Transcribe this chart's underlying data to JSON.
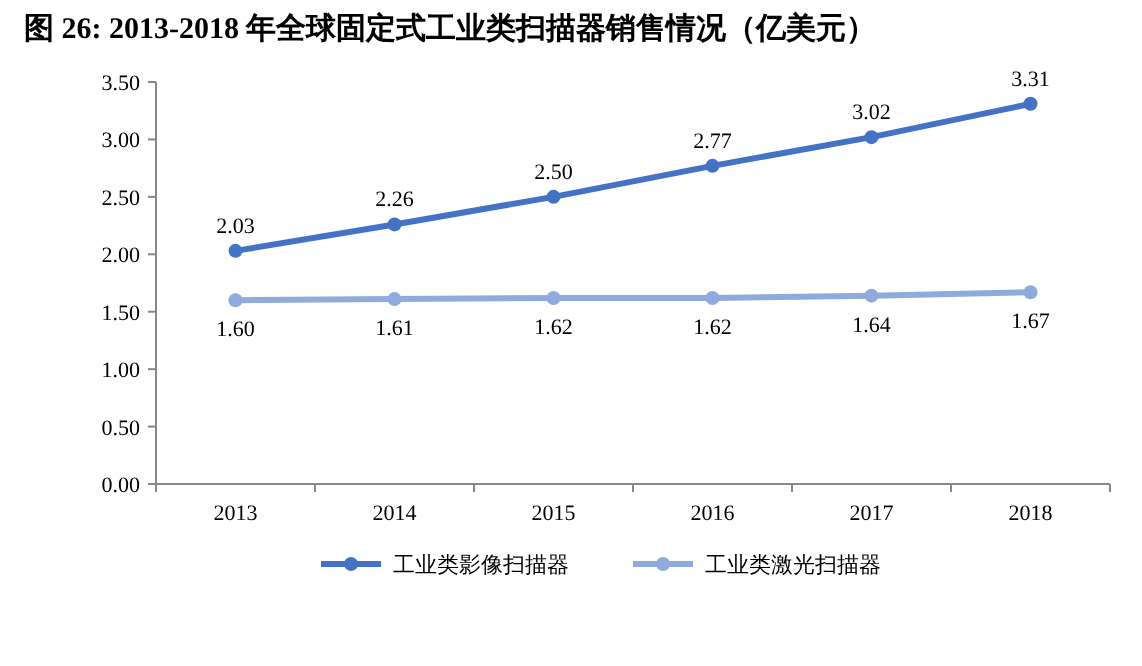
{
  "chart_data": {
    "type": "line",
    "title": "图 26: 2013-2018 年全球固定式工业类扫描器销售情况（亿美元）",
    "categories": [
      "2013",
      "2014",
      "2015",
      "2016",
      "2017",
      "2018"
    ],
    "series": [
      {
        "name": "工业类影像扫描器",
        "color": "#4472c4",
        "values": [
          2.03,
          2.26,
          2.5,
          2.77,
          3.02,
          3.31
        ],
        "value_labels": [
          "2.03",
          "2.26",
          "2.50",
          "2.77",
          "3.02",
          "3.31"
        ]
      },
      {
        "name": "工业类激光扫描器",
        "color": "#8faadc",
        "values": [
          1.6,
          1.61,
          1.62,
          1.62,
          1.64,
          1.67
        ],
        "value_labels": [
          "1.60",
          "1.61",
          "1.62",
          "1.62",
          "1.64",
          "1.67"
        ]
      }
    ],
    "ylim": [
      0,
      3.5
    ],
    "yticks": [
      {
        "value": 0,
        "label": "0.00"
      },
      {
        "value": 0.5,
        "label": "0.50"
      },
      {
        "value": 1,
        "label": "1.00"
      },
      {
        "value": 1.5,
        "label": "1.50"
      },
      {
        "value": 2,
        "label": "2.00"
      },
      {
        "value": 2.5,
        "label": "2.50"
      },
      {
        "value": 3,
        "label": "3.00"
      },
      {
        "value": 3.5,
        "label": "3.50"
      }
    ],
    "legend": "bottom",
    "marker": "circle",
    "line_style": "solid"
  }
}
